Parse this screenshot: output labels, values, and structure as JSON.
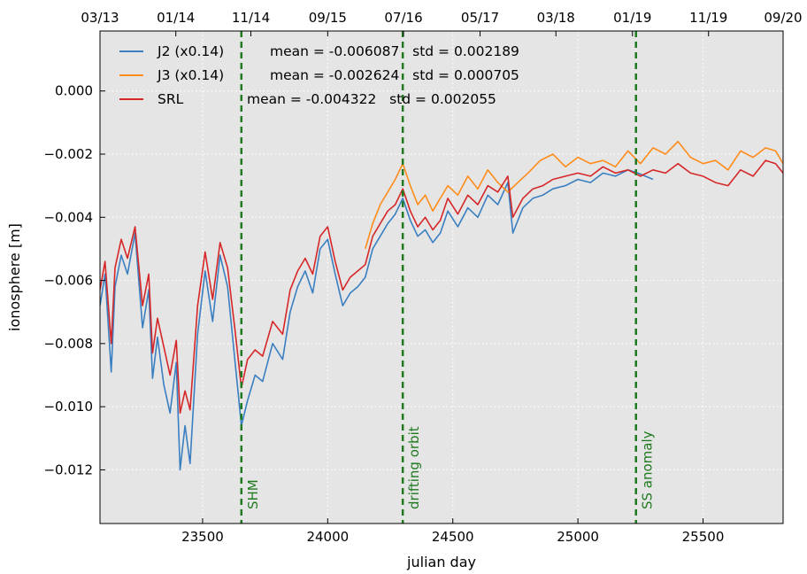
{
  "chart_data": {
    "type": "line",
    "xlabel": "julian day",
    "ylabel": "ionosphere [m]",
    "xlim": [
      23090,
      25820
    ],
    "ylim": [
      -0.0137,
      0.0019
    ],
    "x_ticks": [
      23500,
      24000,
      24500,
      25000,
      25500
    ],
    "x_tick_labels": [
      "23500",
      "24000",
      "24500",
      "25000",
      "25500"
    ],
    "y_ticks": [
      0.0,
      -0.002,
      -0.004,
      -0.006,
      -0.008,
      -0.01,
      -0.012
    ],
    "y_tick_labels": [
      "0.000",
      "−0.002",
      "−0.004",
      "−0.006",
      "−0.008",
      "−0.010",
      "−0.012"
    ],
    "top_axis": {
      "ticks": [
        23090,
        23393,
        23693,
        24000,
        24303,
        24609,
        24912,
        25218,
        25522,
        25820
      ],
      "labels": [
        "03/13",
        "01/14",
        "11/14",
        "09/15",
        "07/16",
        "05/17",
        "03/18",
        "01/19",
        "11/19",
        "09/20"
      ]
    },
    "grid": true,
    "legend_position": "top-left",
    "series": [
      {
        "name": "J2 (x0.14)",
        "stats": "mean = -0.006087   std = 0.002189",
        "color": "#3a7fc1",
        "x": [
          23090,
          23110,
          23135,
          23150,
          23175,
          23200,
          23230,
          23260,
          23285,
          23300,
          23320,
          23345,
          23370,
          23395,
          23410,
          23430,
          23450,
          23480,
          23510,
          23540,
          23570,
          23600,
          23630,
          23655,
          23680,
          23710,
          23740,
          23780,
          23820,
          23850,
          23880,
          23910,
          23940,
          23970,
          24000,
          24030,
          24060,
          24090,
          24120,
          24150,
          24180,
          24210,
          24240,
          24270,
          24300,
          24330,
          24360,
          24390,
          24420,
          24450,
          24480,
          24520,
          24560,
          24600,
          24640,
          24680,
          24720,
          24740,
          24780,
          24820,
          24860,
          24900,
          24950,
          25000,
          25050,
          25100,
          25150,
          25200,
          25240,
          25300
        ],
        "values": [
          -0.0068,
          -0.0058,
          -0.0089,
          -0.0062,
          -0.0052,
          -0.0058,
          -0.0045,
          -0.0075,
          -0.0063,
          -0.0091,
          -0.0078,
          -0.0093,
          -0.0102,
          -0.0086,
          -0.012,
          -0.0106,
          -0.0118,
          -0.0077,
          -0.0057,
          -0.0073,
          -0.0052,
          -0.0062,
          -0.0086,
          -0.0106,
          -0.0098,
          -0.009,
          -0.0092,
          -0.008,
          -0.0085,
          -0.007,
          -0.0062,
          -0.0057,
          -0.0064,
          -0.005,
          -0.0047,
          -0.0058,
          -0.0068,
          -0.0064,
          -0.0062,
          -0.0059,
          -0.005,
          -0.0046,
          -0.0042,
          -0.0039,
          -0.0034,
          -0.0041,
          -0.0046,
          -0.0044,
          -0.0048,
          -0.0045,
          -0.0038,
          -0.0043,
          -0.0037,
          -0.004,
          -0.0033,
          -0.0036,
          -0.0029,
          -0.0045,
          -0.0037,
          -0.0034,
          -0.0033,
          -0.0031,
          -0.003,
          -0.0028,
          -0.0029,
          -0.0026,
          -0.0027,
          -0.0025,
          -0.0026,
          -0.0028
        ]
      },
      {
        "name": "J3 (x0.14)",
        "stats": "mean = -0.002624   std = 0.000705",
        "color": "#ff8c1a",
        "x": [
          24150,
          24180,
          24210,
          24240,
          24270,
          24300,
          24330,
          24360,
          24390,
          24420,
          24450,
          24480,
          24520,
          24560,
          24600,
          24640,
          24680,
          24720,
          24760,
          24800,
          24850,
          24900,
          24950,
          25000,
          25050,
          25100,
          25150,
          25200,
          25250,
          25300,
          25350,
          25400,
          25450,
          25500,
          25550,
          25600,
          25650,
          25700,
          25750,
          25790,
          25820
        ],
        "values": [
          -0.005,
          -0.0042,
          -0.0036,
          -0.0032,
          -0.0028,
          -0.0023,
          -0.003,
          -0.0036,
          -0.0033,
          -0.0038,
          -0.0034,
          -0.003,
          -0.0033,
          -0.0027,
          -0.0031,
          -0.0025,
          -0.0029,
          -0.0032,
          -0.0029,
          -0.0026,
          -0.0022,
          -0.002,
          -0.0024,
          -0.0021,
          -0.0023,
          -0.0022,
          -0.0024,
          -0.0019,
          -0.0023,
          -0.0018,
          -0.002,
          -0.0016,
          -0.0021,
          -0.0023,
          -0.0022,
          -0.0025,
          -0.0019,
          -0.0021,
          -0.0018,
          -0.0019,
          -0.0023
        ]
      },
      {
        "name": "SRL",
        "stats": "mean = -0.004322   std = 0.002055",
        "color": "#d62728",
        "x": [
          23090,
          23110,
          23135,
          23150,
          23175,
          23200,
          23230,
          23260,
          23285,
          23300,
          23320,
          23345,
          23370,
          23395,
          23410,
          23430,
          23450,
          23480,
          23510,
          23540,
          23570,
          23600,
          23630,
          23655,
          23680,
          23710,
          23740,
          23780,
          23820,
          23850,
          23880,
          23910,
          23940,
          23970,
          24000,
          24030,
          24060,
          24090,
          24120,
          24150,
          24180,
          24210,
          24240,
          24270,
          24300,
          24330,
          24360,
          24390,
          24420,
          24450,
          24480,
          24520,
          24560,
          24600,
          24640,
          24680,
          24720,
          24740,
          24780,
          24820,
          24860,
          24900,
          24950,
          25000,
          25050,
          25100,
          25150,
          25200,
          25250,
          25300,
          25350,
          25400,
          25450,
          25500,
          25550,
          25600,
          25650,
          25700,
          25750,
          25790,
          25820
        ],
        "values": [
          -0.0063,
          -0.0054,
          -0.008,
          -0.0056,
          -0.0047,
          -0.0053,
          -0.0043,
          -0.0068,
          -0.0058,
          -0.0083,
          -0.0072,
          -0.0081,
          -0.009,
          -0.0079,
          -0.0102,
          -0.0095,
          -0.0101,
          -0.0068,
          -0.0051,
          -0.0066,
          -0.0048,
          -0.0056,
          -0.0076,
          -0.0094,
          -0.0085,
          -0.0082,
          -0.0084,
          -0.0073,
          -0.0077,
          -0.0063,
          -0.0057,
          -0.0053,
          -0.0058,
          -0.0046,
          -0.0043,
          -0.0054,
          -0.0063,
          -0.0059,
          -0.0057,
          -0.0055,
          -0.0046,
          -0.0042,
          -0.0038,
          -0.0036,
          -0.0031,
          -0.0038,
          -0.0043,
          -0.004,
          -0.0044,
          -0.0041,
          -0.0034,
          -0.0039,
          -0.0033,
          -0.0036,
          -0.003,
          -0.0032,
          -0.0027,
          -0.004,
          -0.0034,
          -0.0031,
          -0.003,
          -0.0028,
          -0.0027,
          -0.0026,
          -0.0027,
          -0.0024,
          -0.0026,
          -0.0025,
          -0.0027,
          -0.0025,
          -0.0026,
          -0.0023,
          -0.0026,
          -0.0027,
          -0.0029,
          -0.003,
          -0.0025,
          -0.0027,
          -0.0022,
          -0.0023,
          -0.0026
        ]
      }
    ],
    "events": [
      {
        "label": "SHM",
        "x": 23655,
        "color": "#1f7a1f"
      },
      {
        "label": "drifting orbit",
        "x": 24300,
        "color": "#1f7a1f"
      },
      {
        "label": "SS anomaly",
        "x": 25232,
        "color": "#1f7a1f"
      }
    ]
  }
}
